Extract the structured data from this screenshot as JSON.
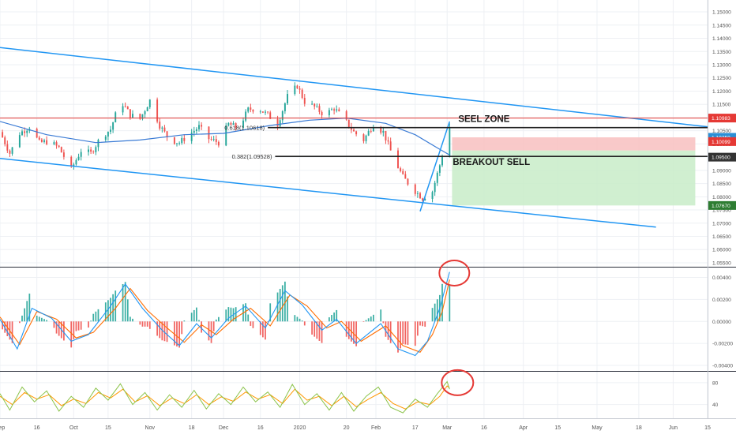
{
  "colors": {
    "up": "#26a69a",
    "down": "#ef5350",
    "channel": "#2196f3",
    "ma": "#3a7bd5",
    "red_line": "#e53935",
    "macd_line": "#2196f3",
    "signal_line": "#ff6d00",
    "rsi_fast": "#8bc34a",
    "rsi_slow": "#ff9800",
    "sell_zone": "#f8c0c0",
    "target_zone": "#c8ecc8",
    "circle": "#e53935"
  },
  "chart_data": [
    {
      "type": "candlestick",
      "panel": "price",
      "x_axis": {
        "type": "date",
        "range": [
          "2019-09-01",
          "2020-06-15"
        ],
        "tick_labels": [
          "Sep",
          "16",
          "Oct",
          "15",
          "Nov",
          "18",
          "Dec",
          "16",
          "2020",
          "20",
          "Feb",
          "17",
          "Mar",
          "16",
          "Apr",
          "15",
          "May",
          "18",
          "Jun",
          "15"
        ],
        "tick_dates": [
          "2019-09-01",
          "2019-09-16",
          "2019-10-01",
          "2019-10-15",
          "2019-11-01",
          "2019-11-18",
          "2019-12-01",
          "2019-12-16",
          "2020-01-01",
          "2020-01-20",
          "2020-02-01",
          "2020-02-17",
          "2020-03-01",
          "2020-03-16",
          "2020-04-01",
          "2020-04-15",
          "2020-05-01",
          "2020-05-18",
          "2020-06-01",
          "2020-06-15"
        ]
      },
      "y_axis": {
        "range": [
          1.0535,
          1.1545
        ],
        "tick_labels": [
          "1.15000",
          "1.14500",
          "1.14000",
          "1.13500",
          "1.13000",
          "1.12500",
          "1.12000",
          "1.11500",
          "1.11000",
          "1.10500",
          "1.10000",
          "1.09500",
          "1.09000",
          "1.08500",
          "1.08000",
          "1.07500",
          "1.07000",
          "1.06500",
          "1.06000",
          "1.05500"
        ],
        "tick_values": [
          1.15,
          1.145,
          1.14,
          1.135,
          1.13,
          1.125,
          1.12,
          1.115,
          1.11,
          1.105,
          1.1,
          1.095,
          1.09,
          1.085,
          1.08,
          1.075,
          1.07,
          1.065,
          1.06,
          1.055
        ]
      },
      "close_path": [
        [
          "2019-09-01",
          1.1045
        ],
        [
          "2019-09-05",
          1.0965
        ],
        [
          "2019-09-09",
          1.104
        ],
        [
          "2019-09-13",
          1.1065
        ],
        [
          "2019-09-17",
          1.1005
        ],
        [
          "2019-09-21",
          1.101
        ],
        [
          "2019-09-25",
          1.0985
        ],
        [
          "2019-09-30",
          1.0905
        ],
        [
          "2019-10-04",
          1.0975
        ],
        [
          "2019-10-08",
          1.0965
        ],
        [
          "2019-10-12",
          1.1025
        ],
        [
          "2019-10-16",
          1.1055
        ],
        [
          "2019-10-20",
          1.1165
        ],
        [
          "2019-10-24",
          1.111
        ],
        [
          "2019-10-28",
          1.1095
        ],
        [
          "2019-11-01",
          1.1165
        ],
        [
          "2019-11-05",
          1.107
        ],
        [
          "2019-11-09",
          1.1015
        ],
        [
          "2019-11-13",
          1.1005
        ],
        [
          "2019-11-17",
          1.1035
        ],
        [
          "2019-11-21",
          1.1065
        ],
        [
          "2019-11-25",
          1.102
        ],
        [
          "2019-11-29",
          1.1005
        ],
        [
          "2019-12-03",
          1.1075
        ],
        [
          "2019-12-07",
          1.106
        ],
        [
          "2019-12-11",
          1.113
        ],
        [
          "2019-12-15",
          1.1135
        ],
        [
          "2019-12-19",
          1.111
        ],
        [
          "2019-12-23",
          1.1075
        ],
        [
          "2019-12-27",
          1.118
        ],
        [
          "2019-12-31",
          1.122
        ],
        [
          "2020-01-03",
          1.116
        ],
        [
          "2020-01-07",
          1.114
        ],
        [
          "2020-01-11",
          1.111
        ],
        [
          "2020-01-15",
          1.1135
        ],
        [
          "2020-01-19",
          1.1095
        ],
        [
          "2020-01-23",
          1.1045
        ],
        [
          "2020-01-27",
          1.1015
        ],
        [
          "2020-01-31",
          1.1075
        ],
        [
          "2020-02-04",
          1.1045
        ],
        [
          "2020-02-08",
          1.095
        ],
        [
          "2020-02-12",
          1.0875
        ],
        [
          "2020-02-16",
          1.083
        ],
        [
          "2020-02-20",
          1.0795
        ],
        [
          "2020-02-24",
          1.082
        ],
        [
          "2020-02-27",
          1.092
        ],
        [
          "2020-03-02",
          1.1065
        ]
      ],
      "moving_average": [
        [
          "2019-09-01",
          1.1085
        ],
        [
          "2019-09-20",
          1.1035
        ],
        [
          "2019-10-10",
          1.1005
        ],
        [
          "2019-10-28",
          1.1015
        ],
        [
          "2019-11-15",
          1.1035
        ],
        [
          "2019-12-01",
          1.104
        ],
        [
          "2019-12-20",
          1.107
        ],
        [
          "2020-01-05",
          1.109
        ],
        [
          "2020-01-20",
          1.1098
        ],
        [
          "2020-02-05",
          1.1078
        ],
        [
          "2020-02-17",
          1.1035
        ],
        [
          "2020-02-26",
          1.0985
        ],
        [
          "2020-03-02",
          1.0958
        ]
      ],
      "channel_upper": [
        [
          "2019-09-01",
          1.1365
        ],
        [
          "2020-06-15",
          1.1065
        ]
      ],
      "channel_lower": [
        [
          "2019-09-01",
          1.0945
        ],
        [
          "2020-05-25",
          1.0685
        ]
      ],
      "trend_line": [
        [
          "2020-02-19",
          1.0745
        ],
        [
          "2020-03-02",
          1.1085
        ]
      ],
      "horizontal_lines": [
        {
          "value": 1.1098,
          "label": "1.10983",
          "color": "#e53935"
        },
        {
          "value": 1.10618,
          "label": "0.618(1.10618)",
          "color": "#222222"
        },
        {
          "value": 1.09528,
          "label": "0.382(1.09528)",
          "color": "#222222"
        }
      ],
      "zones": [
        {
          "name": "sell",
          "from_date": "2020-03-03",
          "to_date": "2020-06-10",
          "top": 1.1025,
          "bottom": 1.0975
        },
        {
          "name": "target",
          "from_date": "2020-03-03",
          "to_date": "2020-06-10",
          "top": 1.0975,
          "bottom": 1.0767
        }
      ],
      "annotations": [
        {
          "text": "SEEL ZONE",
          "date": "2020-03-16",
          "value": 1.1084
        },
        {
          "text": "BREAKOUT SELL",
          "date": "2020-03-19",
          "value": 1.092
        }
      ],
      "price_tags": [
        {
          "label": "1.10983",
          "value": 1.1098,
          "color": "#e53935",
          "text_color": "#ffffff"
        },
        {
          "label": "1.10250",
          "value": 1.1025,
          "color": "#2a8fd6",
          "text_color": "#ffffff"
        },
        {
          "label": "1.10099",
          "value": 1.1009,
          "color": "#e53935",
          "text_color": "#ffffff"
        },
        {
          "label": "1.09500",
          "value": 1.095,
          "color": "#333333",
          "text_color": "#ffffff"
        },
        {
          "label": "1.07670",
          "value": 1.0767,
          "color": "#2e7d32",
          "text_color": "#ffffff"
        }
      ]
    },
    {
      "type": "line",
      "panel": "macd",
      "y_axis": {
        "range": [
          -0.0045,
          0.0049
        ],
        "tick_labels": [
          "0.00400",
          "0.00200",
          "0.00000",
          "-0.00200",
          "-0.00400"
        ],
        "tick_values": [
          0.004,
          0.002,
          0.0,
          -0.002,
          -0.004
        ]
      },
      "series": [
        {
          "key": "macd",
          "values": [
            [
              "2019-09-01",
              0.0002
            ],
            [
              "2019-09-08",
              -0.0025
            ],
            [
              "2019-09-14",
              0.0012
            ],
            [
              "2019-09-22",
              0.0003
            ],
            [
              "2019-09-30",
              -0.0018
            ],
            [
              "2019-10-07",
              -0.0012
            ],
            [
              "2019-10-16",
              0.0014
            ],
            [
              "2019-10-22",
              0.0034
            ],
            [
              "2019-10-29",
              0.0012
            ],
            [
              "2019-11-06",
              -0.0008
            ],
            [
              "2019-11-13",
              -0.0022
            ],
            [
              "2019-11-20",
              -0.0002
            ],
            [
              "2019-11-26",
              -0.0015
            ],
            [
              "2019-12-03",
              0.0003
            ],
            [
              "2019-12-10",
              0.0014
            ],
            [
              "2019-12-18",
              -0.0006
            ],
            [
              "2019-12-26",
              0.0028
            ],
            [
              "2020-01-02",
              0.0015
            ],
            [
              "2020-01-10",
              -0.0008
            ],
            [
              "2020-01-16",
              0.0002
            ],
            [
              "2020-01-24",
              -0.002
            ],
            [
              "2020-02-03",
              -0.0002
            ],
            [
              "2020-02-10",
              -0.0025
            ],
            [
              "2020-02-17",
              -0.0031
            ],
            [
              "2020-02-22",
              -0.0018
            ],
            [
              "2020-02-27",
              0.0012
            ],
            [
              "2020-03-02",
              0.0045
            ]
          ]
        },
        {
          "key": "signal",
          "values": [
            [
              "2019-09-01",
              0.0004
            ],
            [
              "2019-09-09",
              -0.0021
            ],
            [
              "2019-09-16",
              0.0009
            ],
            [
              "2019-09-24",
              0.0002
            ],
            [
              "2019-10-02",
              -0.0015
            ],
            [
              "2019-10-09",
              -0.001
            ],
            [
              "2019-10-18",
              0.0012
            ],
            [
              "2019-10-24",
              0.003
            ],
            [
              "2019-10-31",
              0.001
            ],
            [
              "2019-11-08",
              -0.0006
            ],
            [
              "2019-11-15",
              -0.0019
            ],
            [
              "2019-11-22",
              -0.0003
            ],
            [
              "2019-11-28",
              -0.0012
            ],
            [
              "2019-12-05",
              0.0002
            ],
            [
              "2019-12-12",
              0.0012
            ],
            [
              "2019-12-20",
              -0.0004
            ],
            [
              "2019-12-28",
              0.0024
            ],
            [
              "2020-01-04",
              0.0014
            ],
            [
              "2020-01-12",
              -0.0006
            ],
            [
              "2020-01-18",
              0.0
            ],
            [
              "2020-01-26",
              -0.0018
            ],
            [
              "2020-02-05",
              -0.0004
            ],
            [
              "2020-02-12",
              -0.0022
            ],
            [
              "2020-02-19",
              -0.0028
            ],
            [
              "2020-02-24",
              -0.0012
            ],
            [
              "2020-02-28",
              0.0009
            ],
            [
              "2020-03-02",
              0.0038
            ]
          ]
        }
      ]
    },
    {
      "type": "line",
      "panel": "oscillator",
      "y_axis": {
        "range": [
          15,
          100
        ],
        "tick_labels": [
          "80",
          "40"
        ],
        "tick_values": [
          80,
          40
        ]
      },
      "series": [
        {
          "key": "fast",
          "values": [
            [
              "2019-09-01",
              60
            ],
            [
              "2019-09-05",
              30
            ],
            [
              "2019-09-10",
              72
            ],
            [
              "2019-09-15",
              45
            ],
            [
              "2019-09-20",
              65
            ],
            [
              "2019-09-25",
              28
            ],
            [
              "2019-09-30",
              55
            ],
            [
              "2019-10-05",
              35
            ],
            [
              "2019-10-10",
              70
            ],
            [
              "2019-10-15",
              48
            ],
            [
              "2019-10-20",
              78
            ],
            [
              "2019-10-25",
              40
            ],
            [
              "2019-10-30",
              62
            ],
            [
              "2019-11-04",
              30
            ],
            [
              "2019-11-09",
              58
            ],
            [
              "2019-11-14",
              35
            ],
            [
              "2019-11-19",
              66
            ],
            [
              "2019-11-24",
              32
            ],
            [
              "2019-11-29",
              60
            ],
            [
              "2019-12-04",
              40
            ],
            [
              "2019-12-09",
              72
            ],
            [
              "2019-12-14",
              45
            ],
            [
              "2019-12-19",
              63
            ],
            [
              "2019-12-24",
              35
            ],
            [
              "2019-12-29",
              77
            ],
            [
              "2020-01-03",
              40
            ],
            [
              "2020-01-08",
              60
            ],
            [
              "2020-01-13",
              30
            ],
            [
              "2020-01-18",
              62
            ],
            [
              "2020-01-23",
              28
            ],
            [
              "2020-01-28",
              55
            ],
            [
              "2020-02-02",
              72
            ],
            [
              "2020-02-07",
              35
            ],
            [
              "2020-02-12",
              25
            ],
            [
              "2020-02-17",
              50
            ],
            [
              "2020-02-22",
              35
            ],
            [
              "2020-02-26",
              60
            ],
            [
              "2020-03-01",
              82
            ],
            [
              "2020-03-02",
              68
            ]
          ]
        },
        {
          "key": "slow",
          "values": [
            [
              "2019-09-01",
              55
            ],
            [
              "2019-09-06",
              40
            ],
            [
              "2019-09-11",
              62
            ],
            [
              "2019-09-16",
              50
            ],
            [
              "2019-09-21",
              58
            ],
            [
              "2019-09-26",
              38
            ],
            [
              "2019-10-01",
              50
            ],
            [
              "2019-10-06",
              42
            ],
            [
              "2019-10-11",
              62
            ],
            [
              "2019-10-16",
              52
            ],
            [
              "2019-10-21",
              68
            ],
            [
              "2019-10-26",
              45
            ],
            [
              "2019-10-31",
              56
            ],
            [
              "2019-11-05",
              38
            ],
            [
              "2019-11-10",
              52
            ],
            [
              "2019-11-15",
              42
            ],
            [
              "2019-11-20",
              58
            ],
            [
              "2019-11-25",
              40
            ],
            [
              "2019-11-30",
              54
            ],
            [
              "2019-12-05",
              46
            ],
            [
              "2019-12-10",
              63
            ],
            [
              "2019-12-15",
              50
            ],
            [
              "2019-12-20",
              58
            ],
            [
              "2019-12-25",
              42
            ],
            [
              "2019-12-30",
              68
            ],
            [
              "2020-01-04",
              48
            ],
            [
              "2020-01-09",
              55
            ],
            [
              "2020-01-14",
              38
            ],
            [
              "2020-01-19",
              55
            ],
            [
              "2020-01-24",
              36
            ],
            [
              "2020-01-29",
              50
            ],
            [
              "2020-02-03",
              62
            ],
            [
              "2020-02-08",
              42
            ],
            [
              "2020-02-13",
              32
            ],
            [
              "2020-02-18",
              45
            ],
            [
              "2020-02-23",
              40
            ],
            [
              "2020-02-27",
              55
            ],
            [
              "2020-03-01",
              74
            ],
            [
              "2020-03-02",
              70
            ]
          ]
        }
      ]
    }
  ]
}
